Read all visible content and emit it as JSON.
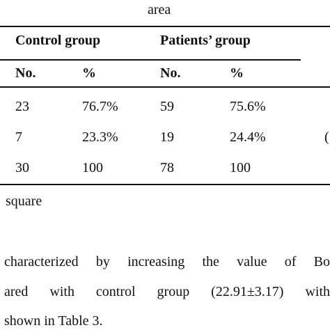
{
  "caption": "area",
  "table": {
    "groups": [
      "Control group",
      "Patients’ group"
    ],
    "subheaders": [
      "No.",
      "%",
      "No.",
      "%"
    ],
    "rows": [
      [
        "23",
        "76.7%",
        "59",
        "75.6%"
      ],
      [
        "7",
        "23.3%",
        "19",
        "24.4%"
      ],
      [
        "30",
        "100",
        "78",
        "100"
      ]
    ],
    "side_text": "("
  },
  "note": "square",
  "paragraph": [
    "characterized by increasing the value of Bo",
    "ared with control group (22.91±3.17) with",
    "shown in Table 3."
  ]
}
